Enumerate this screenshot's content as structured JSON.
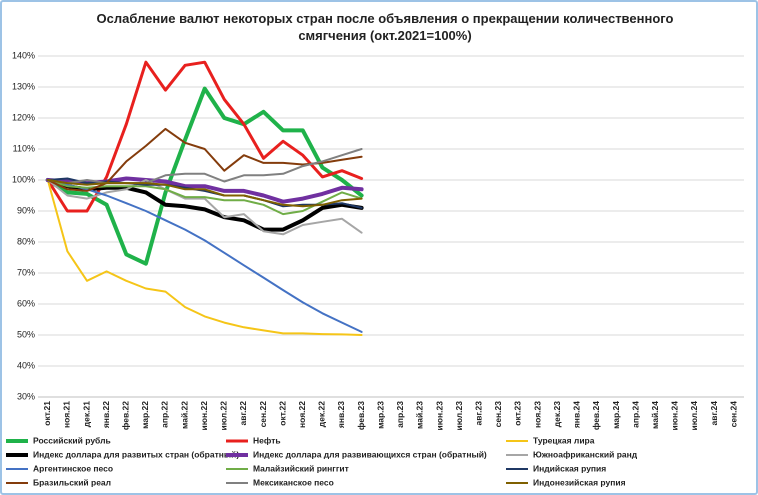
{
  "chart_data": {
    "type": "line",
    "title": "Ослабление валют некоторых стран после объявления о прекращении количественного смягчения  (окт.2021=100%)",
    "categories": [
      "окт.21",
      "ноя.21",
      "дек.21",
      "янв.22",
      "фев.22",
      "мар.22",
      "апр.22",
      "май.22",
      "июн.22",
      "июл.22",
      "авг.22",
      "сен.22",
      "окт.22",
      "ноя.22",
      "дек.22",
      "янв.23",
      "фев.23",
      "мар.23",
      "апр.23",
      "май.23",
      "июн.23",
      "июл.23",
      "авг.23",
      "сен.23",
      "окт.23",
      "ноя.23",
      "дек.23",
      "янв.24",
      "фев.24",
      "мар.24",
      "апр.24",
      "май.24",
      "июн.24",
      "июл.24",
      "авг.24",
      "сен.24"
    ],
    "ylim": [
      30,
      140
    ],
    "yticks": [
      {
        "value": 30,
        "label": "30%"
      },
      {
        "value": 40,
        "label": "40%"
      },
      {
        "value": 50,
        "label": "50%"
      },
      {
        "value": 60,
        "label": "60%"
      },
      {
        "value": 70,
        "label": "70%"
      },
      {
        "value": 80,
        "label": "80%"
      },
      {
        "value": 90,
        "label": "90%"
      },
      {
        "value": 100,
        "label": "100%"
      },
      {
        "value": 110,
        "label": "110%"
      },
      {
        "value": 120,
        "label": "120%"
      },
      {
        "value": 130,
        "label": "130%"
      },
      {
        "value": 140,
        "label": "140%"
      }
    ],
    "grid": true,
    "series": [
      {
        "name": "Российский рубль",
        "color": "#1fb24a",
        "width": 4,
        "values": [
          100,
          96,
          95.5,
          92,
          76,
          73,
          96,
          113,
          129.5,
          120,
          118,
          122,
          116,
          116,
          104,
          100,
          95,
          null,
          null,
          null,
          null,
          null,
          null,
          null,
          null,
          null,
          null,
          null,
          null,
          null,
          null,
          null,
          null,
          null,
          null,
          null
        ]
      },
      {
        "name": "Нефть",
        "color": "#e8201e",
        "width": 3,
        "values": [
          100,
          90,
          90,
          101,
          118,
          138,
          129,
          137,
          138,
          126,
          118,
          107,
          112.5,
          108,
          101,
          103,
          100.5,
          null,
          null,
          null,
          null,
          null,
          null,
          null,
          null,
          null,
          null,
          null,
          null,
          null,
          null,
          null,
          null,
          null,
          null,
          null
        ]
      },
      {
        "name": "Турецкая лира",
        "color": "#f5c518",
        "width": 2,
        "values": [
          100,
          77,
          67.5,
          70.5,
          67.5,
          65,
          64,
          59,
          56,
          54,
          52.5,
          51.5,
          50.5,
          50.5,
          50.3,
          50.2,
          50,
          null,
          null,
          null,
          null,
          null,
          null,
          null,
          null,
          null,
          null,
          null,
          null,
          null,
          null,
          null,
          null,
          null,
          null,
          null
        ]
      },
      {
        "name": "Индекс доллара для развитых стран (обратный)",
        "color": "#000000",
        "width": 4,
        "values": [
          100,
          98,
          97,
          97.5,
          97.5,
          96,
          92,
          91.5,
          90.5,
          88,
          87,
          84,
          84,
          87,
          91,
          92,
          91,
          null,
          null,
          null,
          null,
          null,
          null,
          null,
          null,
          null,
          null,
          null,
          null,
          null,
          null,
          null,
          null,
          null,
          null,
          null
        ]
      },
      {
        "name": "Индекс доллара для развивающихся стран (обратный)",
        "color": "#7030a0",
        "width": 4,
        "values": [
          100,
          99.5,
          99,
          99.5,
          100.5,
          100,
          99.5,
          98,
          98,
          96.5,
          96.5,
          95,
          93,
          94,
          95.5,
          97.5,
          97,
          null,
          null,
          null,
          null,
          null,
          null,
          null,
          null,
          null,
          null,
          null,
          null,
          null,
          null,
          null,
          null,
          null,
          null,
          null
        ]
      },
      {
        "name": "Южноафриканский ранд",
        "color": "#a6a6a6",
        "width": 2,
        "values": [
          100,
          95,
          94,
          96,
          97,
          100,
          97,
          94,
          94,
          88,
          89,
          83.5,
          82.5,
          85.5,
          86.5,
          87.5,
          83,
          null,
          null,
          null,
          null,
          null,
          null,
          null,
          null,
          null,
          null,
          null,
          null,
          null,
          null,
          null,
          null,
          null,
          null,
          null
        ]
      },
      {
        "name": "Аргентинское песо",
        "color": "#4472c4",
        "width": 2,
        "values": [
          100,
          98.5,
          97,
          95,
          92.5,
          90,
          87,
          84,
          80.5,
          76.5,
          72.5,
          68.5,
          64.5,
          60.5,
          57,
          54,
          51,
          null,
          null,
          null,
          null,
          null,
          null,
          null,
          null,
          null,
          null,
          null,
          null,
          null,
          null,
          null,
          null,
          null,
          null,
          null
        ]
      },
      {
        "name": "Малайзийский ринггит",
        "color": "#70ad47",
        "width": 2,
        "values": [
          100,
          98,
          97.5,
          98,
          98,
          98,
          97,
          94.5,
          94.5,
          93.5,
          93.5,
          92,
          89,
          90,
          93,
          96,
          94,
          null,
          null,
          null,
          null,
          null,
          null,
          null,
          null,
          null,
          null,
          null,
          null,
          null,
          null,
          null,
          null,
          null,
          null,
          null
        ]
      },
      {
        "name": "Индийская рупия",
        "color": "#1f3864",
        "width": 2,
        "values": [
          100,
          100.5,
          99,
          99.5,
          99,
          98.5,
          98.5,
          97.5,
          96.5,
          95,
          95,
          93.5,
          91.5,
          92,
          92,
          92.5,
          91,
          null,
          null,
          null,
          null,
          null,
          null,
          null,
          null,
          null,
          null,
          null,
          null,
          null,
          null,
          null,
          null,
          null,
          null,
          null
        ]
      },
      {
        "name": "Бразильский реал",
        "color": "#843c0c",
        "width": 2,
        "values": [
          100,
          97,
          96.5,
          99,
          106,
          111,
          116.5,
          112,
          110,
          103,
          108,
          105.5,
          105.5,
          105,
          105.5,
          106.5,
          107.5,
          null,
          null,
          null,
          null,
          null,
          null,
          null,
          null,
          null,
          null,
          null,
          null,
          null,
          null,
          null,
          null,
          null,
          null,
          null
        ]
      },
      {
        "name": "Мексиканское песо",
        "color": "#808080",
        "width": 2,
        "values": [
          100,
          99,
          100,
          99,
          99,
          99,
          101.5,
          102,
          102,
          99.5,
          101.5,
          101.5,
          102,
          104.5,
          106,
          108,
          110,
          null,
          null,
          null,
          null,
          null,
          null,
          null,
          null,
          null,
          null,
          null,
          null,
          null,
          null,
          null,
          null,
          null,
          null,
          null
        ]
      },
      {
        "name": "Индонезийская рупия",
        "color": "#7f6000",
        "width": 2,
        "values": [
          100,
          99,
          98.5,
          99,
          99,
          99,
          98.5,
          97,
          97,
          95,
          95,
          93.5,
          92,
          91.5,
          92,
          93.5,
          94,
          null,
          null,
          null,
          null,
          null,
          null,
          null,
          null,
          null,
          null,
          null,
          null,
          null,
          null,
          null,
          null,
          null,
          null,
          null
        ]
      }
    ]
  }
}
